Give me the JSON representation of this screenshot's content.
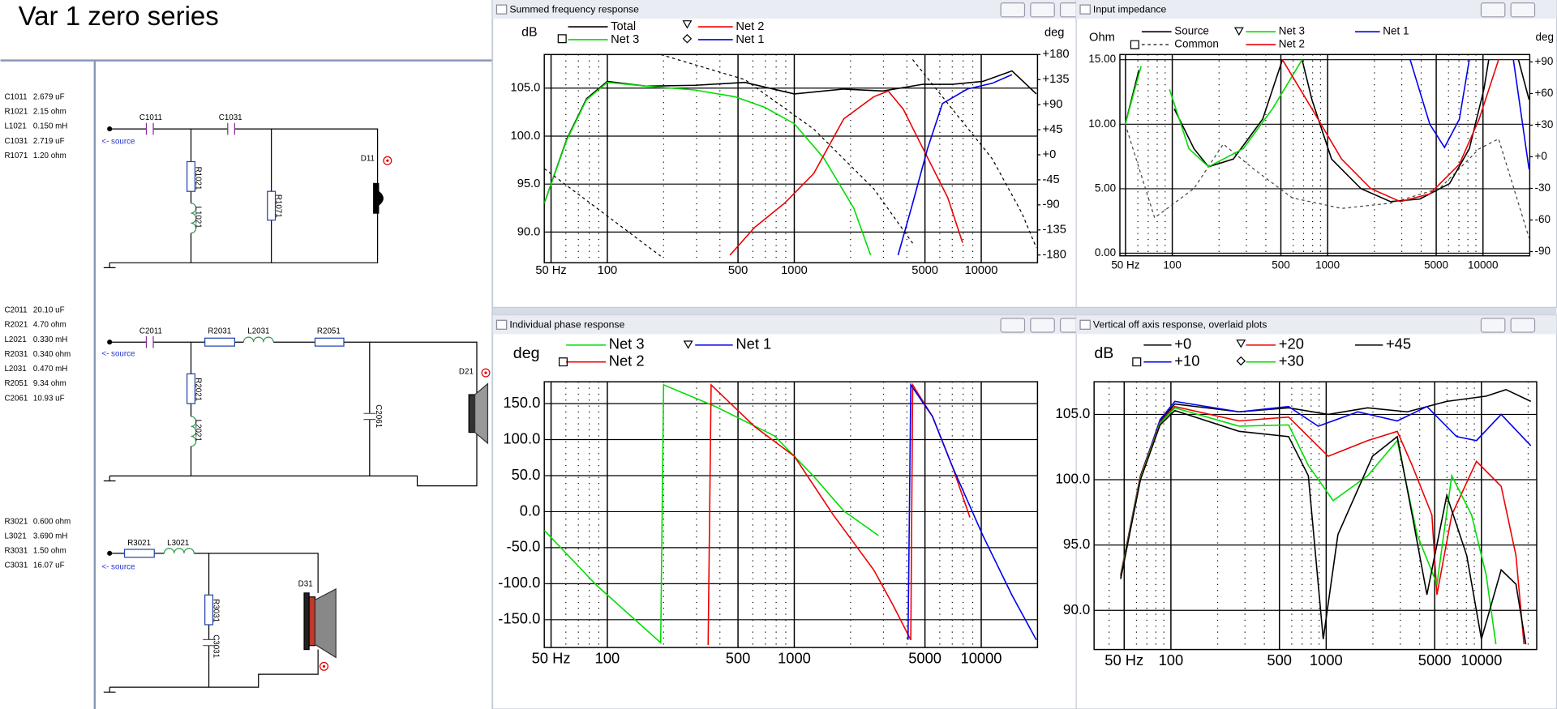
{
  "title": "Var 1 zero series",
  "schematic": {
    "sections": [
      {
        "components": [
          {
            "name": "C1011",
            "value": "2.679 uF"
          },
          {
            "name": "R1021",
            "value": "2.15 ohm"
          },
          {
            "name": "L1021",
            "value": "0.150 mH"
          },
          {
            "name": "C1031",
            "value": "2.719 uF"
          },
          {
            "name": "R1071",
            "value": "1.20 ohm"
          }
        ],
        "driver": "D11",
        "source_label": "<- source"
      },
      {
        "components": [
          {
            "name": "C2011",
            "value": "20.10 uF"
          },
          {
            "name": "R2021",
            "value": "4.70 ohm"
          },
          {
            "name": "L2021",
            "value": "0.330 mH"
          },
          {
            "name": "R2031",
            "value": "0.340 ohm"
          },
          {
            "name": "L2031",
            "value": "0.470 mH"
          },
          {
            "name": "R2051",
            "value": "9.34 ohm"
          },
          {
            "name": "C2061",
            "value": "10.93 uF"
          }
        ],
        "driver": "D21",
        "source_label": "<- source"
      },
      {
        "components": [
          {
            "name": "R3021",
            "value": "0.600 ohm"
          },
          {
            "name": "L3021",
            "value": "3.690 mH"
          },
          {
            "name": "R3031",
            "value": "1.50 ohm"
          },
          {
            "name": "C3031",
            "value": "16.07 uF"
          }
        ],
        "driver": "D31",
        "source_label": "<- source"
      }
    ]
  },
  "chart_data": [
    {
      "type": "line",
      "title": "Summed frequency response",
      "ylabel": "dB",
      "y2label": "deg",
      "log_x": true,
      "grid": true,
      "xlim": [
        46,
        20000
      ],
      "xticks": [
        {
          "value": 50,
          "label": "50 Hz"
        },
        100,
        500,
        1000,
        5000,
        10000
      ],
      "ylim": [
        86.8,
        108.5
      ],
      "yticks": [
        {
          "value": 105,
          "label": "105.0"
        },
        {
          "value": 100,
          "label": "100.0"
        },
        {
          "value": 95,
          "label": "95.0"
        },
        {
          "value": 90,
          "label": "90.0"
        }
      ],
      "y2lim": [
        -194,
        180
      ],
      "y2ticks": [
        {
          "value": 180,
          "label": "+180"
        },
        {
          "value": 135,
          "label": "+135"
        },
        {
          "value": 90,
          "label": "+90"
        },
        {
          "value": 45,
          "label": "+45"
        },
        {
          "value": 0,
          "label": "+0"
        },
        -45,
        -90,
        -135,
        -180
      ],
      "series": [
        {
          "name": "Total",
          "color": "#000000",
          "x": [
            46,
            60.7,
            77.4,
            100,
            161,
            296,
            544,
            1000,
            1840,
            2980,
            4880,
            7000,
            10200,
            14600,
            19700
          ],
          "values": [
            93.0,
            99.7,
            103.9,
            105.7,
            105.2,
            105.3,
            105.6,
            104.4,
            104.9,
            104.7,
            105.4,
            105.4,
            105.7,
            106.8,
            104.4
          ]
        },
        {
          "name": "Net 3",
          "color": "#00dd00",
          "x": [
            46,
            60.7,
            77.4,
            100,
            161,
            296,
            482,
            694,
            1000,
            1440,
            2080,
            2560
          ],
          "values": [
            93.0,
            99.6,
            103.8,
            105.6,
            105.2,
            104.8,
            104.1,
            103.0,
            101.3,
            97.7,
            92.5,
            87.6
          ]
        },
        {
          "name": "Net 2",
          "color": "#ee0000",
          "x": [
            453,
            615,
            886,
            1270,
            1840,
            2660,
            3180,
            3830,
            4880,
            6620,
            7950
          ],
          "values": [
            87.6,
            90.5,
            93.0,
            96.1,
            101.8,
            104.1,
            104.7,
            102.8,
            98.7,
            93.6,
            88.9
          ]
        },
        {
          "name": "Net 1",
          "color": "#0000ee",
          "x": [
            3590,
            4300,
            5160,
            6200,
            8430,
            11440,
            14600
          ],
          "values": [
            87.6,
            93.0,
            98.7,
            103.4,
            104.9,
            105.5,
            106.4
          ]
        },
        {
          "color": "#000000",
          "axis": "y2",
          "dashed": true,
          "x": [
            46,
            88,
            193,
            null,
            193,
            544,
            1270,
            2660,
            4300,
            null,
            4300,
            7000,
            11440,
            16500,
            19700
          ],
          "values": [
            -25,
            -96,
            -182,
            null,
            180,
            135,
            46,
            -61,
            -159,
            null,
            171,
            82,
            -7,
            -105,
            -167
          ]
        }
      ]
    },
    {
      "type": "line",
      "title": "Input impedance",
      "ylabel": "Ohm",
      "y2label": "deg",
      "log_x": true,
      "grid": true,
      "xlim": [
        46,
        20000
      ],
      "xticks": [
        {
          "value": 50,
          "label": "50 Hz"
        },
        100,
        500,
        1000,
        5000,
        10000
      ],
      "ylim": [
        -0.2,
        15.4
      ],
      "yticks": [
        {
          "value": 15,
          "label": "15.00"
        },
        {
          "value": 10,
          "label": "10.00"
        },
        {
          "value": 5,
          "label": "5.00"
        },
        {
          "value": 0,
          "label": "0.00"
        }
      ],
      "y2lim": [
        -94,
        97
      ],
      "y2ticks": [
        {
          "value": 90,
          "label": "+90"
        },
        {
          "value": 60,
          "label": "+60"
        },
        {
          "value": 30,
          "label": "+30"
        },
        {
          "value": 0,
          "label": "+0"
        },
        -30,
        -60,
        -90
      ],
      "series": [
        {
          "name": "Source",
          "color": "#000000",
          "x": [
            49.8,
            61,
            null,
            103,
            138,
            171,
            247,
            382,
            512,
            null,
            685,
            792,
            1060,
            1640,
            2540,
            3930,
            6090,
            8170,
            10140,
            10900,
            null,
            16900,
            19800
          ],
          "values": [
            10,
            14.2,
            null,
            11.2,
            8.1,
            6.7,
            7.3,
            10.4,
            15,
            null,
            15,
            11.9,
            7.3,
            5,
            4,
            4.2,
            5.4,
            8.1,
            12.7,
            15,
            null,
            15,
            11.9
          ]
        },
        {
          "name": "Common",
          "color": "#444444",
          "axis": "y2",
          "dashed": true,
          "x": [
            49.8,
            77,
            138,
            213,
            330,
            591,
            1230,
            2540,
            5270,
            9440,
            12600,
            19800
          ],
          "values": [
            31,
            -58,
            -30,
            12,
            -11,
            -39,
            -49,
            -44,
            -30,
            7.5,
            17,
            -77
          ]
        },
        {
          "name": "Net 3",
          "color": "#00dd00",
          "x": [
            49.8,
            63,
            null,
            96,
            128,
            171,
            286,
            442,
            685
          ],
          "values": [
            10,
            14.5,
            null,
            12.7,
            8.1,
            6.7,
            8.1,
            11.2,
            15
          ]
        },
        {
          "name": "Net 2",
          "color": "#ee0000",
          "x": [
            512,
            792,
            1230,
            1900,
            2940,
            4550,
            7050,
            9440,
            12600
          ],
          "values": [
            15,
            11.2,
            7.3,
            5,
            4,
            4.6,
            6.9,
            10.4,
            15
          ]
        },
        {
          "name": "Net 1",
          "color": "#0000ee",
          "x": [
            3400,
            4550,
            5650,
            7050,
            8170,
            null,
            15700,
            19800
          ],
          "values": [
            15,
            10,
            8.2,
            10.4,
            15,
            null,
            15,
            6.5
          ]
        }
      ]
    },
    {
      "type": "line",
      "title": "Individual phase response",
      "ylabel": "deg",
      "log_x": true,
      "grid": true,
      "xlim": [
        46,
        20000
      ],
      "xticks": [
        {
          "value": 50,
          "label": "50 Hz"
        },
        100,
        500,
        1000,
        5000,
        10000
      ],
      "ylim": [
        -188.6,
        180.3
      ],
      "yticks": [
        {
          "value": 150,
          "label": "150.0"
        },
        {
          "value": 100,
          "label": "100.0"
        },
        {
          "value": 50,
          "label": "50.0"
        },
        {
          "value": 0,
          "label": "0.0"
        },
        {
          "value": -50,
          "label": "-50.0"
        },
        {
          "value": -100,
          "label": "-100.0"
        },
        {
          "value": -150,
          "label": "-150.0"
        }
      ],
      "series": [
        {
          "name": "Net 3",
          "color": "#00dd00",
          "x": [
            46,
            87.4,
            193,
            200,
            378,
            786,
            1270,
            1840,
            2820
          ],
          "values": [
            -26,
            -102,
            -182,
            176,
            146,
            105,
            49,
            1,
            -33
          ]
        },
        {
          "name": "Net 2",
          "color": "#ee0000",
          "x": [
            346,
            359,
            615,
            1000,
            1630,
            2660,
            3380,
            4200,
            4300,
            5490,
            7000,
            8700
          ],
          "values": [
            -185,
            176,
            118,
            77,
            -6,
            -81,
            -130,
            -178,
            176,
            132,
            63,
            -8
          ]
        },
        {
          "name": "Net 1",
          "color": "#0000ee",
          "x": [
            4060,
            4200,
            5490,
            7000,
            10200,
            14600,
            19700
          ],
          "values": [
            -178,
            176,
            132,
            63,
            -33,
            -116,
            -178
          ]
        }
      ]
    },
    {
      "type": "line",
      "title": "Vertical off axis response, overlaid plots",
      "ylabel": "dB",
      "log_x": true,
      "grid": true,
      "xlim": [
        32,
        22700
      ],
      "xticks": [
        {
          "value": 50,
          "label": "50 Hz"
        },
        100,
        500,
        1000,
        5000,
        10000
      ],
      "ylim": [
        87,
        107.5
      ],
      "yticks": [
        {
          "value": 105,
          "label": "105.0"
        },
        {
          "value": 100,
          "label": "100.0"
        },
        {
          "value": 95,
          "label": "95.0"
        },
        {
          "value": 90,
          "label": "90.0"
        }
      ],
      "series": [
        {
          "name": "+0",
          "color": "#000000",
          "x": [
            47.5,
            63.6,
            85.2,
            106,
            275,
            573,
            1030,
            1850,
            3330,
            5980,
            10730,
            14400,
            20800
          ],
          "values": [
            92.7,
            100.3,
            104.5,
            105.8,
            105.2,
            105.5,
            105,
            105.5,
            105.2,
            106,
            106.4,
            106.9,
            106
          ]
        },
        {
          "name": "+10",
          "color": "#0000ee",
          "x": [
            47.5,
            63.6,
            85.2,
            106,
            275,
            573,
            889,
            1600,
            2870,
            4460,
            6920,
            9290,
            13400,
            20800
          ],
          "values": [
            92.6,
            100.2,
            104.6,
            106,
            105.2,
            105.6,
            104.1,
            105.2,
            104.5,
            105.6,
            103.3,
            103,
            105,
            102.6
          ]
        },
        {
          "name": "+20",
          "color": "#ee0000",
          "x": [
            47.5,
            63.6,
            85.2,
            106,
            275,
            573,
            1030,
            1850,
            2870,
            3580,
            4800,
            5170,
            6440,
            9290,
            13400,
            16700,
            18800
          ],
          "values": [
            92.6,
            100.2,
            104.4,
            105.6,
            104.5,
            104.8,
            101.8,
            103,
            103.7,
            101.1,
            97.3,
            91.2,
            97.3,
            101.4,
            99.5,
            94.2,
            87.4
          ]
        },
        {
          "name": "+30",
          "color": "#00dd00",
          "x": [
            47.5,
            63.6,
            85.2,
            106,
            275,
            573,
            768,
            1110,
            1850,
            2870,
            3850,
            5170,
            6440,
            8640,
            10730,
            12400
          ],
          "values": [
            92.5,
            100.1,
            104.3,
            105.5,
            104.1,
            104.2,
            101.1,
            98.4,
            100.3,
            103,
            95.8,
            92,
            100.3,
            97.3,
            92.7,
            87.4
          ]
        },
        {
          "name": "+45",
          "color": "#000000",
          "x": [
            47.5,
            63.6,
            85.2,
            106,
            275,
            573,
            768,
            957,
            1190,
            1990,
            2870,
            3580,
            4460,
            5980,
            8040,
            10000,
            13400,
            16700,
            19300
          ],
          "values": [
            92.4,
            100,
            104.2,
            105.3,
            103.7,
            103.3,
            100.3,
            87.8,
            95.8,
            101.8,
            103.3,
            97.3,
            91.2,
            98.8,
            94.2,
            87.8,
            93.1,
            92,
            87.4
          ]
        }
      ]
    }
  ]
}
